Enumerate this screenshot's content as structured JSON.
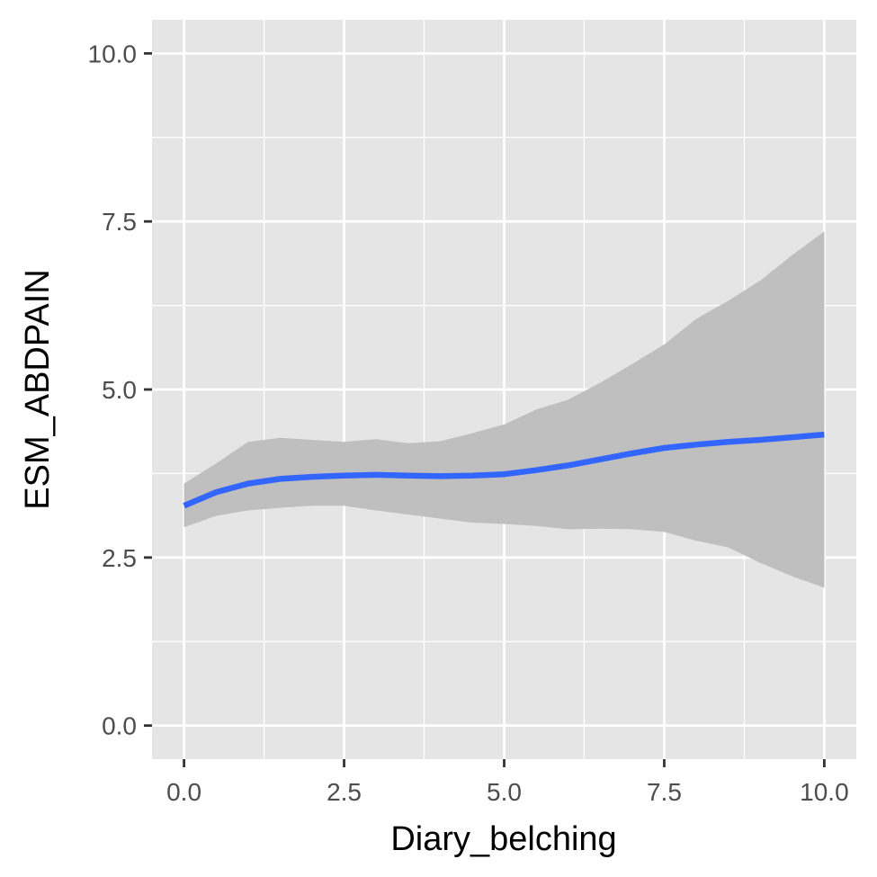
{
  "chart_data": {
    "type": "line",
    "title": "",
    "xlabel": "Diary_belching",
    "ylabel": "ESM_ABDPAIN",
    "xlim": [
      -0.5,
      10.5
    ],
    "ylim": [
      -0.5,
      10.5
    ],
    "x_ticks": [
      0,
      2.5,
      5,
      7.5,
      10
    ],
    "x_tick_labels": [
      "0.0",
      "2.5",
      "5.0",
      "7.5",
      "10.0"
    ],
    "y_ticks": [
      0,
      2.5,
      5,
      7.5,
      10
    ],
    "y_tick_labels": [
      "0.0",
      "2.5",
      "5.0",
      "7.5",
      "10.0"
    ],
    "grid": true,
    "colors": {
      "panel_background": "#e5e5e5",
      "grid_line": "#ffffff",
      "line": "#3366ff",
      "ribbon": "#bfbfbf",
      "tick": "#333333"
    },
    "series": [
      {
        "fit": [
          {
            "x": 0.0,
            "y": 3.27
          },
          {
            "x": 0.5,
            "y": 3.47
          },
          {
            "x": 1.0,
            "y": 3.6
          },
          {
            "x": 1.5,
            "y": 3.67
          },
          {
            "x": 2.0,
            "y": 3.7
          },
          {
            "x": 2.5,
            "y": 3.72
          },
          {
            "x": 3.0,
            "y": 3.73
          },
          {
            "x": 3.5,
            "y": 3.72
          },
          {
            "x": 4.0,
            "y": 3.71
          },
          {
            "x": 4.5,
            "y": 3.72
          },
          {
            "x": 5.0,
            "y": 3.74
          },
          {
            "x": 5.5,
            "y": 3.8
          },
          {
            "x": 6.0,
            "y": 3.87
          },
          {
            "x": 6.5,
            "y": 3.96
          },
          {
            "x": 7.0,
            "y": 4.05
          },
          {
            "x": 7.5,
            "y": 4.13
          },
          {
            "x": 8.0,
            "y": 4.18
          },
          {
            "x": 8.5,
            "y": 4.22
          },
          {
            "x": 9.0,
            "y": 4.25
          },
          {
            "x": 9.5,
            "y": 4.29
          },
          {
            "x": 10.0,
            "y": 4.33
          }
        ],
        "band": [
          {
            "x": 0.0,
            "lower": 2.95,
            "upper": 3.6
          },
          {
            "x": 0.5,
            "lower": 3.12,
            "upper": 3.9
          },
          {
            "x": 1.0,
            "lower": 3.2,
            "upper": 4.22
          },
          {
            "x": 1.5,
            "lower": 3.24,
            "upper": 4.28
          },
          {
            "x": 2.0,
            "lower": 3.27,
            "upper": 4.25
          },
          {
            "x": 2.5,
            "lower": 3.27,
            "upper": 4.22
          },
          {
            "x": 3.0,
            "lower": 3.2,
            "upper": 4.26
          },
          {
            "x": 3.5,
            "lower": 3.14,
            "upper": 4.2
          },
          {
            "x": 4.0,
            "lower": 3.08,
            "upper": 4.23
          },
          {
            "x": 4.5,
            "lower": 3.02,
            "upper": 4.35
          },
          {
            "x": 5.0,
            "lower": 3.0,
            "upper": 4.48
          },
          {
            "x": 5.5,
            "lower": 2.97,
            "upper": 4.7
          },
          {
            "x": 6.0,
            "lower": 2.92,
            "upper": 4.85
          },
          {
            "x": 6.5,
            "lower": 2.93,
            "upper": 5.1
          },
          {
            "x": 7.0,
            "lower": 2.92,
            "upper": 5.38
          },
          {
            "x": 7.5,
            "lower": 2.88,
            "upper": 5.67
          },
          {
            "x": 8.0,
            "lower": 2.75,
            "upper": 6.05
          },
          {
            "x": 8.5,
            "lower": 2.65,
            "upper": 6.32
          },
          {
            "x": 9.0,
            "lower": 2.42,
            "upper": 6.62
          },
          {
            "x": 9.5,
            "lower": 2.22,
            "upper": 7.0
          },
          {
            "x": 10.0,
            "lower": 2.05,
            "upper": 7.35
          }
        ]
      }
    ]
  }
}
